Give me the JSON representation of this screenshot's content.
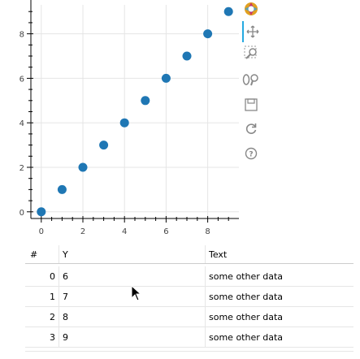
{
  "chart_data": {
    "type": "scatter",
    "title": "",
    "xlabel": "",
    "ylabel": "",
    "x": [
      0,
      1,
      2,
      3,
      4,
      5,
      6,
      7,
      8,
      9
    ],
    "y": [
      0,
      1,
      2,
      3,
      4,
      5,
      6,
      7,
      8,
      9
    ],
    "xlim": [
      -0.5,
      9.5
    ],
    "ylim": [
      -0.3,
      9.3
    ],
    "xticks": [
      0,
      2,
      4,
      6,
      8
    ],
    "yticks": [
      0,
      2,
      4,
      6,
      8
    ],
    "grid": true,
    "point_color": "#1f77b4"
  },
  "toolbar": {
    "tools": [
      "bokeh-logo-icon",
      "pan-icon",
      "box-zoom-icon",
      "wheel-zoom-icon",
      "save-icon",
      "reset-icon",
      "help-icon"
    ],
    "active_color": "#26aae1"
  },
  "table": {
    "headers": {
      "index": "#",
      "y": "Y",
      "text": "Text"
    },
    "rows": [
      {
        "index": "0",
        "y": "6",
        "text": "some other data"
      },
      {
        "index": "1",
        "y": "7",
        "text": "some other data"
      },
      {
        "index": "2",
        "y": "8",
        "text": "some other data"
      },
      {
        "index": "3",
        "y": "9",
        "text": "some other data"
      }
    ]
  }
}
